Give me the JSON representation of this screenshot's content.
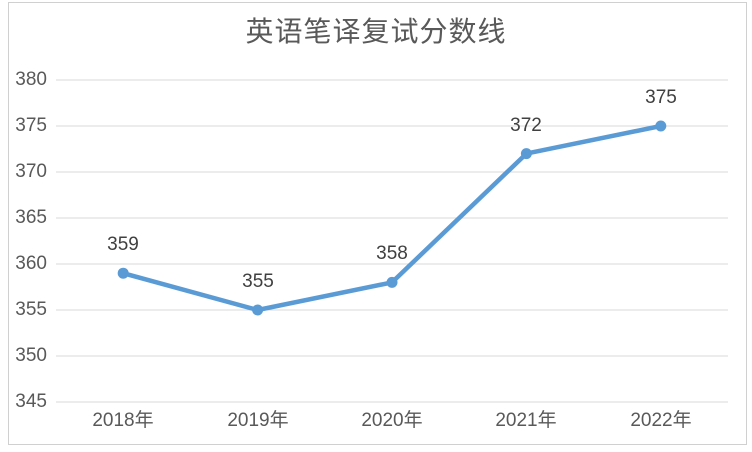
{
  "chart_data": {
    "type": "line",
    "title": "英语笔译复试分数线",
    "categories": [
      "2018年",
      "2019年",
      "2020年",
      "2021年",
      "2022年"
    ],
    "series": [
      {
        "name": "英语笔译复试分数线",
        "values": [
          359,
          355,
          358,
          372,
          375
        ]
      }
    ],
    "data_labels": [
      359,
      355,
      358,
      372,
      375
    ],
    "yticks": [
      345,
      350,
      355,
      360,
      365,
      370,
      375,
      380
    ],
    "ylim": [
      345,
      380
    ],
    "xlabel": "",
    "ylabel": "",
    "grid": true,
    "legend_position": "none",
    "colors": {
      "line": "#5B9BD5",
      "marker": "#5B9BD5",
      "gridline": "#D9D9D9",
      "title_text": "#595959",
      "axis_text": "#595959",
      "data_label_text": "#404040",
      "frame_border": "#D0D0D0",
      "background": "#FFFFFF"
    }
  }
}
